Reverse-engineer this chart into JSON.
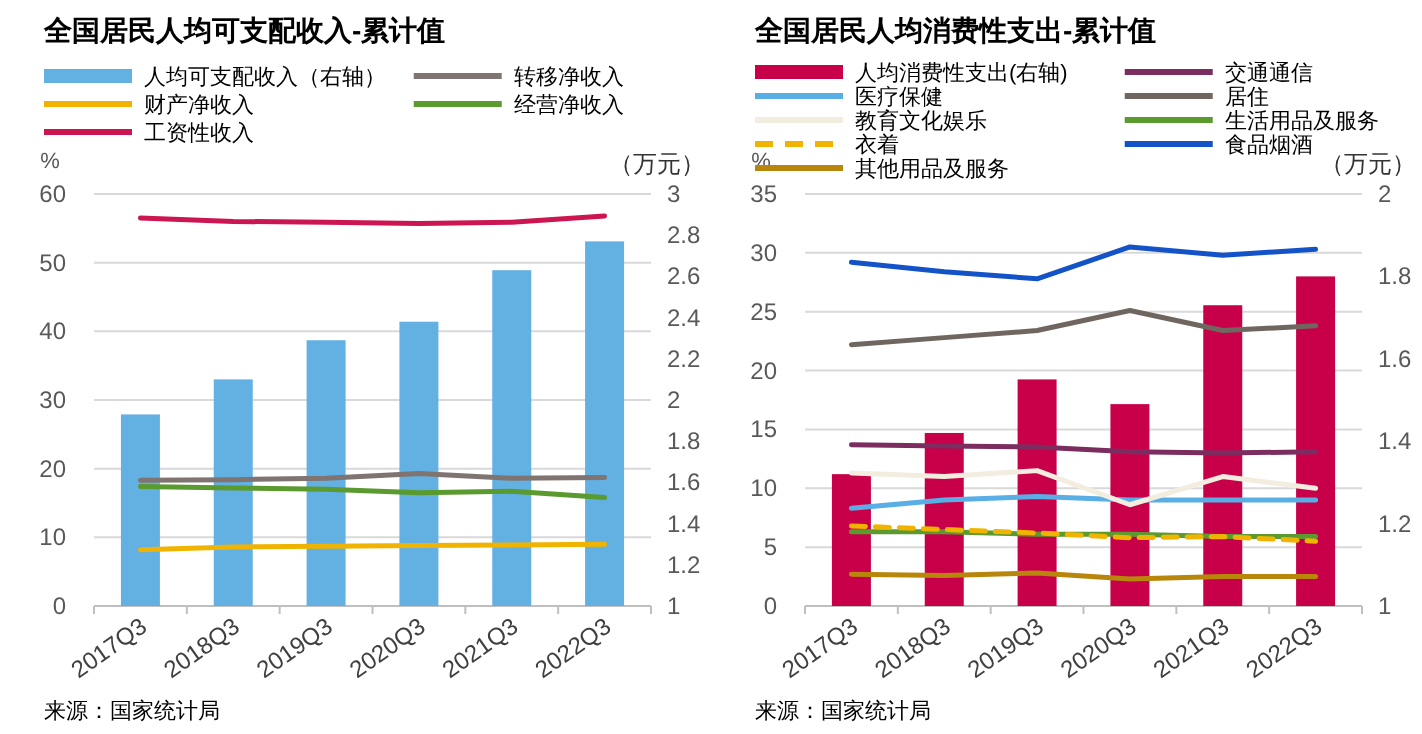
{
  "chart_data": [
    {
      "type": "bar",
      "title": "全国居民人均可支配收入-累计值",
      "ylabel": "%",
      "y2label": "（万元）",
      "categories": [
        "2017Q3",
        "2018Q3",
        "2019Q3",
        "2020Q3",
        "2021Q3",
        "2022Q3"
      ],
      "ylim": [
        0,
        60
      ],
      "yticks": [
        0,
        10,
        20,
        30,
        40,
        50,
        60
      ],
      "y2lim": [
        1,
        3
      ],
      "y2ticks": [
        1,
        1.2,
        1.4,
        1.6,
        1.8,
        2,
        2.2,
        2.4,
        2.6,
        2.8,
        3
      ],
      "grid": "y",
      "legend": "top",
      "annotations": [
        "来源：国家统计局"
      ],
      "series": [
        {
          "name": "人均可支配收入（右轴）",
          "axis": "y2",
          "color": "#63b0e3",
          "values": [
            1.93,
            2.1,
            2.29,
            2.38,
            2.63,
            2.77
          ]
        },
        {
          "name": "转移净收入",
          "type": "line",
          "color": "#7f7470",
          "values": [
            18.3,
            18.4,
            18.6,
            19.3,
            18.6,
            18.7
          ]
        },
        {
          "name": "财产净收入",
          "type": "line",
          "color": "#f0b400",
          "values": [
            8.2,
            8.6,
            8.7,
            8.8,
            8.9,
            9.0
          ]
        },
        {
          "name": "经营净收入",
          "type": "line",
          "color": "#5b9a2e",
          "values": [
            17.4,
            17.2,
            17.0,
            16.5,
            16.7,
            15.8
          ]
        },
        {
          "name": "工资性收入",
          "type": "line",
          "color": "#cc1652",
          "values": [
            56.5,
            56.0,
            55.9,
            55.7,
            55.9,
            56.8
          ]
        }
      ]
    },
    {
      "type": "bar",
      "title": "全国居民人均消费性支出-累计值",
      "ylabel": "%",
      "y2label": "（万元）",
      "categories": [
        "2017Q3",
        "2018Q3",
        "2019Q3",
        "2020Q3",
        "2021Q3",
        "2022Q3"
      ],
      "ylim": [
        0,
        35
      ],
      "yticks": [
        0,
        5,
        10,
        15,
        20,
        25,
        30,
        35
      ],
      "y2lim": [
        1,
        2
      ],
      "y2ticks": [
        1,
        1.2,
        1.4,
        1.6,
        1.8,
        2
      ],
      "grid": "y",
      "legend": "top",
      "annotations": [
        "来源：国家统计局"
      ],
      "series": [
        {
          "name": "人均消费性支出(右轴)",
          "axis": "y2",
          "color": "#c8004a",
          "values": [
            1.32,
            1.42,
            1.55,
            1.49,
            1.73,
            1.8
          ]
        },
        {
          "name": "交通通信",
          "type": "line",
          "color": "#7b2d5f",
          "values": [
            13.7,
            13.6,
            13.5,
            13.1,
            13.0,
            13.1
          ]
        },
        {
          "name": "医疗保健",
          "type": "line",
          "color": "#5aaee6",
          "values": [
            8.3,
            9.0,
            9.3,
            9.0,
            9.0,
            9.0
          ]
        },
        {
          "name": "居住",
          "type": "line",
          "color": "#706660",
          "values": [
            22.2,
            22.8,
            23.4,
            25.1,
            23.4,
            23.8
          ]
        },
        {
          "name": "教育文化娱乐",
          "type": "line",
          "color": "#f3ede0",
          "values": [
            11.3,
            11.0,
            11.5,
            8.6,
            11.0,
            10.0
          ]
        },
        {
          "name": "生活用品及服务",
          "type": "line",
          "color": "#5a9a2e",
          "values": [
            6.3,
            6.3,
            6.1,
            6.1,
            5.9,
            5.9
          ]
        },
        {
          "name": "衣着",
          "type": "line",
          "line_style": "dashed",
          "color": "#f0b400",
          "values": [
            6.8,
            6.5,
            6.2,
            5.8,
            5.9,
            5.5
          ]
        },
        {
          "name": "食品烟酒",
          "type": "line",
          "color": "#1452c8",
          "values": [
            29.2,
            28.4,
            27.8,
            30.5,
            29.8,
            30.3
          ]
        },
        {
          "name": "其他用品及服务",
          "type": "line",
          "color": "#b8860b",
          "values": [
            2.7,
            2.6,
            2.8,
            2.3,
            2.5,
            2.5
          ]
        }
      ]
    }
  ]
}
